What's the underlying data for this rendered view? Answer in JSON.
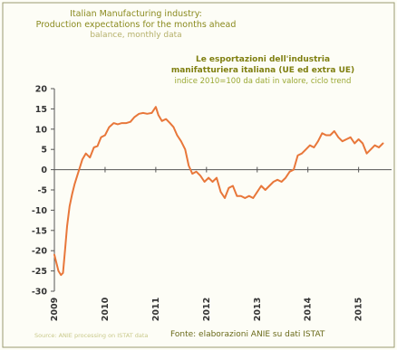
{
  "header": {
    "title_lines": [
      "Italian Manufacturing industry:",
      "Production expectations for the months ahead",
      "balance, monthly data"
    ],
    "italian_title_lines": [
      "Le esportazioni dell'industria",
      "manifatturiera italiana (UE ed extra UE)",
      "indice 2010=100 da dati in valore, ciclo trend"
    ]
  },
  "footer": {
    "source_en": "Source: ANIE processing on ISTAT data",
    "source_it": "Fonte: elaborazioni ANIE su dati ISTAT"
  },
  "colors": {
    "line": "#e8773a",
    "background": "#fdfdf6",
    "title": "#8a8a1e"
  },
  "chart_data": {
    "type": "line",
    "title": "Italian Manufacturing industry: Production expectations for the months ahead",
    "subtitle": "balance, monthly data",
    "xlabel": "",
    "ylabel": "",
    "ylim": [
      -30,
      20
    ],
    "yticks": [
      20,
      15,
      10,
      5,
      0,
      -5,
      -10,
      -15,
      -20,
      -25,
      -30
    ],
    "xlim": [
      2009.0,
      2015.65
    ],
    "xticks": [
      "2009",
      "2010",
      "2011",
      "2012",
      "2013",
      "2014",
      "2015"
    ],
    "grid": false,
    "legend": "none",
    "series": [
      {
        "x": [
          2009.0,
          2009.08,
          2009.13,
          2009.17,
          2009.21,
          2009.25,
          2009.3,
          2009.35,
          2009.4,
          2009.45,
          2009.5,
          2009.55,
          2009.62,
          2009.7,
          2009.78,
          2009.85,
          2009.92,
          2010.0,
          2010.08,
          2010.17,
          2010.25,
          2010.33,
          2010.42,
          2010.5,
          2010.58,
          2010.67,
          2010.75,
          2010.83,
          2010.92,
          2011.0,
          2011.05,
          2011.12,
          2011.2,
          2011.28,
          2011.35,
          2011.42,
          2011.5,
          2011.58,
          2011.65,
          2011.72,
          2011.8,
          2011.88,
          2011.96,
          2012.04,
          2012.12,
          2012.2,
          2012.28,
          2012.36,
          2012.44,
          2012.52,
          2012.6,
          2012.68,
          2012.76,
          2012.84,
          2012.92,
          2013.0,
          2013.08,
          2013.16,
          2013.24,
          2013.32,
          2013.4,
          2013.48,
          2013.56,
          2013.64,
          2013.72,
          2013.8,
          2013.88,
          2013.96,
          2014.04,
          2014.12,
          2014.2,
          2014.28,
          2014.36,
          2014.44,
          2014.52,
          2014.6,
          2014.68,
          2014.76,
          2014.84,
          2014.92,
          2015.0,
          2015.08,
          2015.16,
          2015.24,
          2015.32,
          2015.4,
          2015.48
        ],
        "values": [
          -21,
          -25,
          -26,
          -25.5,
          -20,
          -14,
          -9,
          -6,
          -3.5,
          -1.5,
          0.5,
          2.5,
          4,
          3,
          5.5,
          5.8,
          8,
          8.5,
          10.5,
          11.5,
          11.2,
          11.5,
          11.5,
          11.8,
          13,
          13.8,
          14,
          13.8,
          14,
          15.5,
          13.5,
          12,
          12.5,
          11.5,
          10.5,
          8.5,
          7,
          5,
          1,
          -1,
          -0.5,
          -1.5,
          -3,
          -2,
          -3,
          -2,
          -5.5,
          -7,
          -4.5,
          -4,
          -6.5,
          -6.5,
          -7,
          -6.5,
          -7,
          -5.5,
          -4,
          -5,
          -4,
          -3,
          -2.5,
          -3,
          -2,
          -0.5,
          0,
          3.5,
          4,
          5,
          6,
          5.5,
          7,
          9,
          8.5,
          8.5,
          9.5,
          8,
          7,
          7.5,
          8,
          6.5,
          7.5,
          6.5,
          4,
          5,
          6,
          5.5,
          6.5
        ]
      }
    ]
  }
}
